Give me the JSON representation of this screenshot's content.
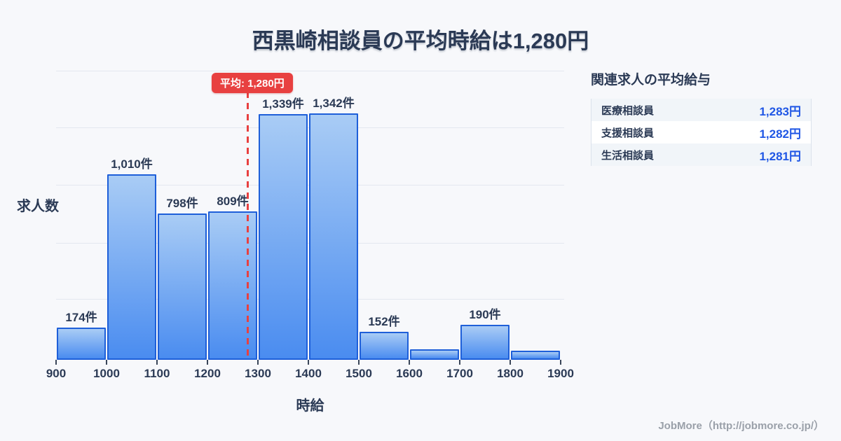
{
  "title": "西黒崎相談員の平均時給は1,280円",
  "chart_data": {
    "type": "bar",
    "title": "西黒崎相談員の平均時給は1,280円",
    "xlabel": "時給",
    "ylabel": "求人数",
    "bin_edges": [
      900,
      1000,
      1100,
      1200,
      1300,
      1400,
      1500,
      1600,
      1700,
      1800,
      1900
    ],
    "x_tick_labels": [
      "900",
      "1000",
      "1100",
      "1200",
      "1300",
      "1400",
      "1500",
      "1600",
      "1700",
      "1800",
      "1900"
    ],
    "categories": [
      "900-1000",
      "1000-1100",
      "1100-1200",
      "1200-1300",
      "1300-1400",
      "1400-1500",
      "1500-1600",
      "1600-1700",
      "1700-1800",
      "1800-1900"
    ],
    "values": [
      174,
      1010,
      798,
      809,
      1339,
      1342,
      152,
      57,
      190,
      49
    ],
    "bar_labels": [
      "174件",
      "1,010件",
      "798件",
      "809件",
      "1,339件",
      "1,342件",
      "152件",
      "",
      "190件",
      ""
    ],
    "ylim": [
      0,
      1575
    ],
    "grid": true,
    "mean": {
      "value": 1280,
      "label": "平均: 1,280円"
    },
    "colors": {
      "bar_border": "#1e5fd9",
      "bar_fill_top": "#a9ccf5",
      "bar_fill_bottom": "#4a8cf0",
      "mean_red": "#e84040",
      "title_navy": "#2b3a55",
      "background": "#f7f8fb"
    }
  },
  "side_panel": {
    "title": "関連求人の平均給与",
    "rows": [
      {
        "label": "医療相談員",
        "value": "1,283円"
      },
      {
        "label": "支援相談員",
        "value": "1,282円"
      },
      {
        "label": "生活相談員",
        "value": "1,281円"
      }
    ],
    "value_color": "#2057e5"
  },
  "footer": {
    "credit": "JobMore（http://jobmore.co.jp/）"
  }
}
